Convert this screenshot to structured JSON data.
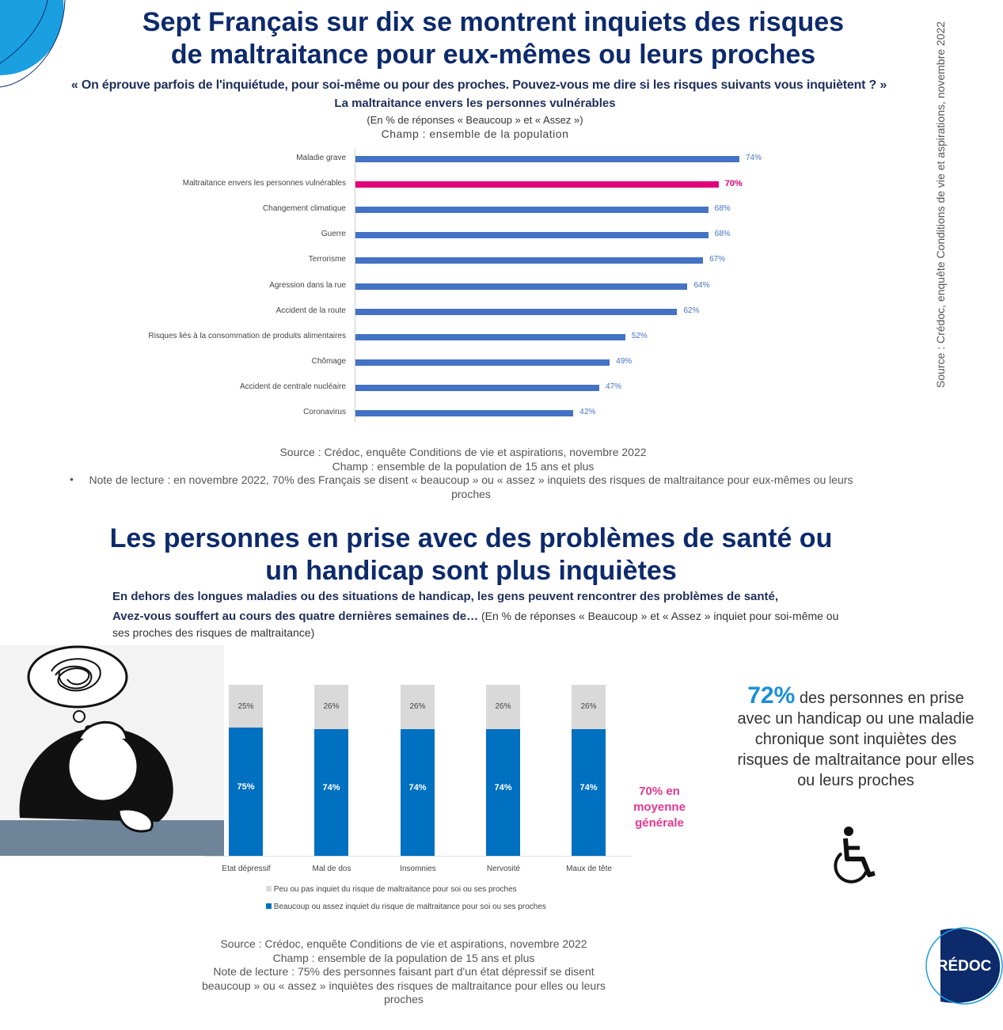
{
  "top": {
    "title_line1": "Sept Français sur dix se montrent inquiets des risques",
    "title_line2": "de maltraitance pour eux-mêmes ou leurs proches",
    "question": "« On éprouve parfois de l'inquiétude, pour soi-même ou pour des proches. Pouvez-vous me dire si les risques suivants vous inquiètent ? »",
    "subtitle": "La maltraitance envers les personnes vulnérables",
    "unit": "(En % de réponses « Beaucoup » et « Assez »)",
    "champ": "Champ : ensemble de la population",
    "source": "Source : Crédoc, enquête Conditions de vie et aspirations, novembre 2022",
    "champ2": "Champ : ensemble de la population de 15 ans et plus",
    "note": "Note de lecture : en novembre 2022, 70% des Français se disent « beaucoup » ou « assez » inquiets des risques de maltraitance pour eux-mêmes ou leurs proches"
  },
  "side_source": "Source : Crédoc, enquête Conditions de vie et aspirations, novembre 2022",
  "bottom": {
    "title_line1": "Les personnes en prise avec des problèmes de santé ou",
    "title_line2": "un handicap sont plus inquiètes",
    "intro1": "En dehors des longues maladies ou des situations de handicap, les gens peuvent rencontrer des problèmes de santé,",
    "intro2": "Avez-vous souffert au cours des quatre dernières semaines de…",
    "intro_unit": "(En % de réponses « Beaucoup » et « Assez » inquiet pour soi-même ou ses proches des risques de maltraitance)",
    "average_note": "70% en moyenne générale",
    "callout_pct": "72%",
    "callout_text": "des personnes en prise avec un handicap ou une maladie chronique sont inquiètes des risques de maltraitance pour elles ou leurs proches",
    "source": "Source : Crédoc, enquête Conditions de vie et aspirations, novembre 2022",
    "champ": "Champ : ensemble de la population de 15 ans et plus",
    "note": "Note de lecture : 75% des personnes faisant part d'un état dépressif se disent beaucoup » ou « assez » inquiètes des risques de maltraitance pour elles ou leurs proches"
  },
  "logo": "CRÉDOC",
  "icons": {
    "accessibility": "wheelchair-icon"
  },
  "colors": {
    "bar": "#4472c4",
    "highlight": "#e2007a",
    "stack_blue": "#0070c0",
    "stack_grey": "#d9d9d9",
    "title": "#0d2a6b"
  },
  "chart_data": [
    {
      "type": "bar",
      "orientation": "horizontal",
      "categories": [
        "Maladie grave",
        "Maltraitance envers les personnes vulnérables",
        "Changement climatique",
        "Guerre",
        "Terrorisme",
        "Agression dans la rue",
        "Accident de la route",
        "Risques liés à la consommation de produits alimentaires",
        "Chômage",
        "Accident de centrale nucléaire",
        "Coronavirus"
      ],
      "values": [
        74,
        70,
        68,
        68,
        67,
        64,
        62,
        52,
        49,
        47,
        42
      ],
      "labels": [
        "74%",
        "70%",
        "68%",
        "68%",
        "67%",
        "64%",
        "62%",
        "52%",
        "49%",
        "47%",
        "42%"
      ],
      "highlight_index": 1,
      "xlim": [
        0,
        74
      ]
    },
    {
      "type": "bar",
      "stacked": true,
      "categories": [
        "Etat dépressif",
        "Mal de dos",
        "Insomnies",
        "Nervosité",
        "Maux de tête"
      ],
      "series": [
        {
          "name": "Beaucoup ou assez inquiet du risque de maltraitance pour soi ou ses proches",
          "values": [
            75,
            74,
            74,
            74,
            74
          ],
          "labels": [
            "75%",
            "74%",
            "74%",
            "74%",
            "74%"
          ]
        },
        {
          "name": "Peu ou pas inquiet du risque de maltraitance pour soi ou ses proches",
          "values": [
            25,
            26,
            26,
            26,
            26
          ],
          "labels": [
            "25%",
            "26%",
            "26%",
            "26%",
            "26%"
          ]
        }
      ],
      "legend": "bottom",
      "ylim": [
        0,
        100
      ]
    }
  ]
}
